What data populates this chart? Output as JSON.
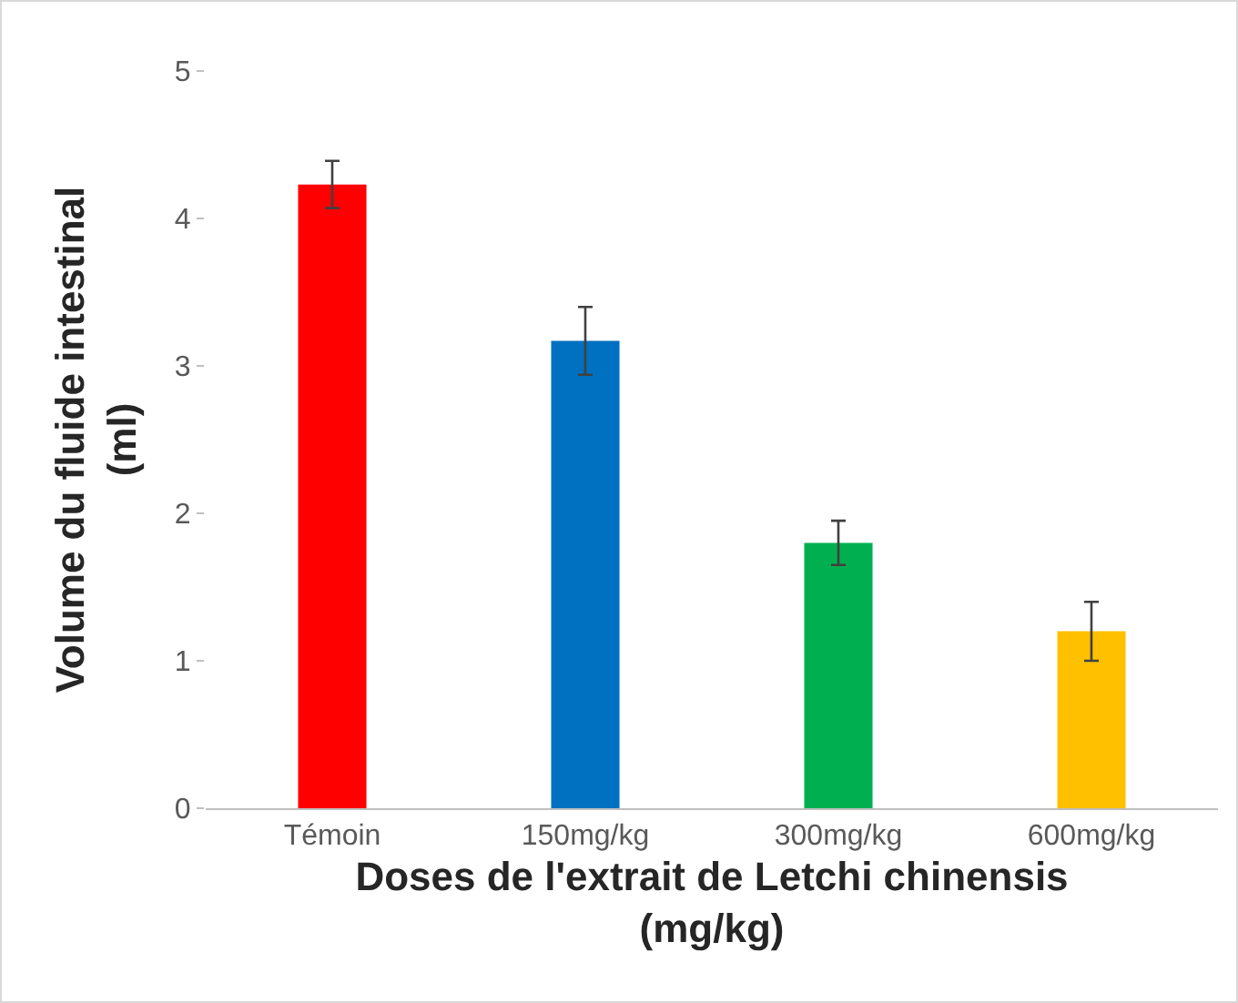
{
  "chart_data": {
    "type": "bar",
    "xlabel": "Doses de l'extrait de Letchi chinensis\n(mg/kg)",
    "ylabel": "Volume du fluide intestinal\n(ml)",
    "categories": [
      "Témoin",
      "150mg/kg",
      "300mg/kg",
      "600mg/kg"
    ],
    "values": [
      4.23,
      3.17,
      1.8,
      1.2
    ],
    "colors": [
      "#ff0000",
      "#0070c0",
      "#00b050",
      "#ffc000"
    ],
    "errors": [
      0.16,
      0.23,
      0.15,
      0.2
    ],
    "ylim": [
      0,
      5
    ],
    "yticks": [
      0,
      1,
      2,
      3,
      4,
      5
    ],
    "grid": false
  }
}
